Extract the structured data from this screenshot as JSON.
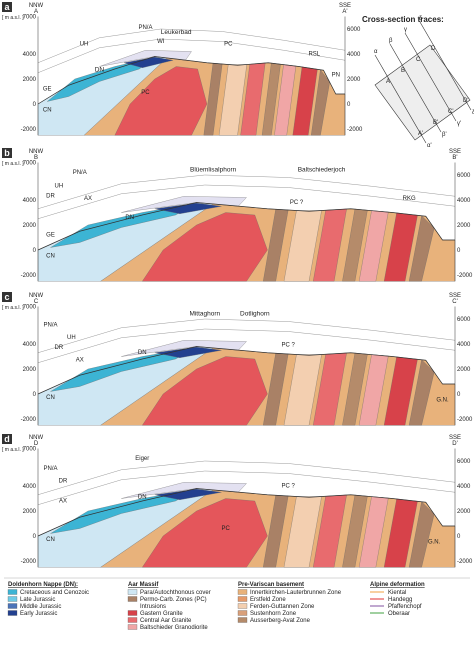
{
  "panels": [
    {
      "label": "a",
      "left_dir": "NNW",
      "left_point": "A",
      "right_dir": "SSE",
      "right_point": "A'",
      "unit": "[ m a.s.l. ]",
      "left_ticks": [
        7000,
        4000,
        2000,
        0,
        -2000
      ],
      "right_ticks": [
        6000,
        4000,
        2000,
        0,
        -2000
      ],
      "places": [
        "Leukerbad",
        "DN",
        "PC",
        "PC",
        "PN/A",
        "UH",
        "WI",
        "GE",
        "CN",
        "RSL",
        "PN"
      ]
    },
    {
      "label": "b",
      "left_dir": "NNW",
      "left_point": "B",
      "right_dir": "SSE",
      "right_point": "B'",
      "unit": "[ m a.s.l. ]",
      "left_ticks": [
        7000,
        4000,
        2000,
        0,
        -2000
      ],
      "right_ticks": [
        6000,
        4000,
        2000,
        0,
        -2000
      ],
      "places": [
        "Blüemlisalphorn",
        "Baltschiederjoch",
        "DN",
        "PC ?",
        "PN/A",
        "UH",
        "DR",
        "AX",
        "GE",
        "CN",
        "RKG"
      ]
    },
    {
      "label": "c",
      "left_dir": "NNW",
      "left_point": "C",
      "right_dir": "SSE",
      "right_point": "C'",
      "unit": "[ m a.s.l. ]",
      "left_ticks": [
        7000,
        4000,
        2000,
        0,
        -2000
      ],
      "right_ticks": [
        6000,
        4000,
        2000,
        0,
        -2000
      ],
      "places": [
        "Mittaghorn",
        "Dotlighorn",
        "DN",
        "PC ?",
        "PN/A",
        "UH",
        "DR",
        "AX",
        "CN",
        "G.N."
      ]
    },
    {
      "label": "d",
      "left_dir": "NNW",
      "left_point": "D",
      "right_dir": "SSE",
      "right_point": "D'",
      "unit": "[ m a.s.l. ]",
      "left_ticks": [
        7000,
        4000,
        2000,
        0,
        -2000
      ],
      "right_ticks": [
        6000,
        4000,
        2000,
        0,
        -2000
      ],
      "places": [
        "Eiger",
        "DN",
        "PC ?",
        "PC",
        "PN/A",
        "DR",
        "AX",
        "CN",
        "G.N."
      ]
    }
  ],
  "inset": {
    "title": "Cross-section traces:",
    "points": [
      "A",
      "A'",
      "B",
      "B'",
      "C",
      "C'",
      "D",
      "D'"
    ],
    "greek": [
      "α",
      "β",
      "γ",
      "δ",
      "α'",
      "β'",
      "γ'",
      "δ'"
    ]
  },
  "legend": {
    "groups": [
      {
        "title": "Doldenhorn Nappe (DN):",
        "items": [
          {
            "label": "Cretaceous and Cenozoic",
            "color": "#3cb4d4"
          },
          {
            "label": "Late Jurassic",
            "color": "#6fcbe6"
          },
          {
            "label": "Middle Jurassic",
            "color": "#4b73b8"
          },
          {
            "label": "Early Jurassic",
            "color": "#23408f"
          }
        ]
      },
      {
        "title": "Aar Massif",
        "items": [
          {
            "label": "Para/Autochthonous cover",
            "color": "#cfe7f3"
          },
          {
            "label": "Permo-Carb. Zones (PC)",
            "color": "#a98166"
          }
        ],
        "subtitle": "Intrusions",
        "sub_items": [
          {
            "label": "Gastern Granite",
            "color": "#d7424a"
          },
          {
            "label": "Central Aar Granite",
            "color": "#e86b6e"
          },
          {
            "label": "Baltschieder Granodiorite",
            "color": "#f0a6a6"
          }
        ]
      },
      {
        "title": "Pre-Variscan basement",
        "items": [
          {
            "label": "Innertkirchen-Lauterbrunnen Zone",
            "color": "#e8b27b"
          },
          {
            "label": "Erstfeld Zone",
            "color": "#e59a6a"
          },
          {
            "label": "Ferden-Guttannen Zone",
            "color": "#f3cfb0"
          },
          {
            "label": "Sustenhorn Zone",
            "color": "#d9a07a"
          },
          {
            "label": "Ausserberg-Avat Zone",
            "color": "#b58b6a"
          }
        ]
      },
      {
        "title": "Alpine deformation",
        "lines": [
          {
            "label": "Kiental",
            "color": "#f0a040"
          },
          {
            "label": "Handegg",
            "color": "#e03030"
          },
          {
            "label": "Pfaffenchopf",
            "color": "#8050a0"
          },
          {
            "label": "Oberaar",
            "color": "#40a040"
          }
        ]
      }
    ]
  }
}
